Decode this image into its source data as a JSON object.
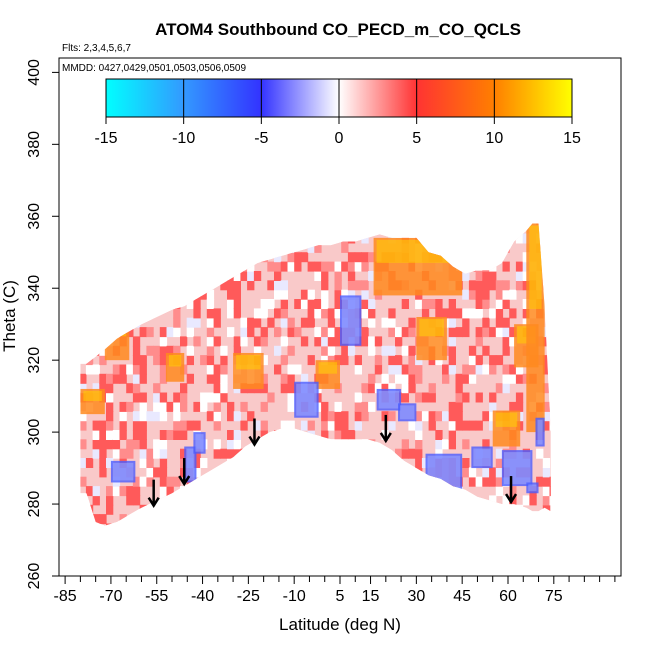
{
  "chart_data": {
    "type": "heatmap",
    "title": "ATOM4 Southbound CO_PECD_m_CO_QCLS",
    "subtitle_flights": "Flts: 2,3,4,5,6,7",
    "subtitle_dates": "MMDD: 0427,0429,0501,0503,0506,0509",
    "xlabel": "Latitude (deg N)",
    "ylabel": "Theta (C)",
    "xlim": [
      -87,
      97
    ],
    "ylim": [
      260,
      404
    ],
    "x_ticks": [
      -85,
      -70,
      -55,
      -40,
      -25,
      -10,
      5,
      15,
      30,
      45,
      60,
      75
    ],
    "x_tick_labels": [
      "-85",
      "-70",
      "-55",
      "-40",
      "-25",
      "-10",
      "5",
      "15",
      "30",
      "45",
      "60",
      "75"
    ],
    "x_minor_ticks": [
      -80,
      -75,
      -65,
      -60,
      -50,
      -45,
      -35,
      -30,
      -20,
      -15,
      -5,
      0,
      10,
      20,
      25,
      35,
      40,
      50,
      55,
      65,
      70,
      80,
      85,
      90,
      95
    ],
    "y_ticks": [
      260,
      280,
      300,
      320,
      340,
      360,
      380,
      400
    ],
    "y_tick_labels": [
      "260",
      "280",
      "300",
      "320",
      "340",
      "360",
      "380",
      "400"
    ],
    "colorbar": {
      "min": -15,
      "max": 15,
      "ticks": [
        -15,
        -10,
        -5,
        0,
        5,
        10,
        15
      ],
      "tick_labels": [
        "-15",
        "-10",
        "-5",
        "0",
        "5",
        "10",
        "15"
      ],
      "colors": [
        "#00ffff",
        "#3399ff",
        "#3333ff",
        "#ffffff",
        "#ff3333",
        "#ff7f00",
        "#ffff00"
      ]
    },
    "arrows_latitude": [
      -56,
      -46,
      -23,
      20,
      61
    ],
    "data_envelope": {
      "lat": [
        -80,
        -78,
        -75,
        -72,
        -68,
        -64,
        -60,
        -55,
        -50,
        -46,
        -42,
        -38,
        -34,
        -30,
        -26,
        -22,
        -18,
        -14,
        -10,
        -6,
        -2,
        2,
        6,
        10,
        14,
        18,
        22,
        26,
        30,
        34,
        38,
        42,
        46,
        50,
        54,
        58,
        62,
        66,
        68,
        70,
        72,
        74
      ],
      "theta_min": [
        283,
        283,
        275,
        274,
        275,
        277,
        279,
        281,
        283,
        285,
        287,
        289,
        291,
        293,
        296,
        298,
        300,
        301,
        301,
        300,
        299,
        298,
        298,
        298,
        298,
        297,
        295,
        292,
        290,
        288,
        287,
        285,
        284,
        282,
        281,
        280,
        280,
        279,
        278,
        278,
        279,
        278
      ],
      "theta_max": [
        319,
        319,
        321,
        323,
        326,
        328,
        330,
        332,
        334,
        335,
        337,
        339,
        341,
        343,
        345,
        347,
        348,
        349,
        350,
        351,
        352,
        352,
        353,
        353,
        354,
        355,
        354,
        354,
        354,
        350,
        349,
        346,
        344,
        345,
        345,
        347,
        353,
        356,
        358,
        358,
        335,
        300
      ]
    },
    "blue_regions": [
      {
        "lat": [
          -70,
          -62
        ],
        "theta": [
          286,
          292
        ]
      },
      {
        "lat": [
          -46,
          -42
        ],
        "theta": [
          286,
          296
        ]
      },
      {
        "lat": [
          -43,
          -39
        ],
        "theta": [
          294,
          300
        ]
      },
      {
        "lat": [
          5,
          12
        ],
        "theta": [
          324,
          338
        ]
      },
      {
        "lat": [
          17,
          25
        ],
        "theta": [
          306,
          312
        ]
      },
      {
        "lat": [
          24,
          30
        ],
        "theta": [
          303,
          308
        ]
      },
      {
        "lat": [
          33,
          45
        ],
        "theta": [
          284,
          294
        ]
      },
      {
        "lat": [
          48,
          55
        ],
        "theta": [
          290,
          296
        ]
      },
      {
        "lat": [
          58,
          68
        ],
        "theta": [
          285,
          295
        ]
      },
      {
        "lat": [
          66,
          70
        ],
        "theta": [
          283,
          286
        ]
      },
      {
        "lat": [
          69,
          72
        ],
        "theta": [
          296,
          304
        ]
      },
      {
        "lat": [
          -10,
          -2
        ],
        "theta": [
          304,
          314
        ]
      }
    ],
    "hot_regions": [
      {
        "lat": [
          -80,
          -72
        ],
        "theta": [
          305,
          312
        ]
      },
      {
        "lat": [
          -72,
          -64
        ],
        "theta": [
          320,
          332
        ]
      },
      {
        "lat": [
          -52,
          -46
        ],
        "theta": [
          314,
          322
        ]
      },
      {
        "lat": [
          -30,
          -20
        ],
        "theta": [
          312,
          322
        ]
      },
      {
        "lat": [
          -3,
          5
        ],
        "theta": [
          312,
          320
        ]
      },
      {
        "lat": [
          16,
          45
        ],
        "theta": [
          338,
          354
        ]
      },
      {
        "lat": [
          30,
          40
        ],
        "theta": [
          320,
          332
        ]
      },
      {
        "lat": [
          55,
          64
        ],
        "theta": [
          296,
          306
        ]
      },
      {
        "lat": [
          62,
          70
        ],
        "theta": [
          318,
          330
        ]
      },
      {
        "lat": [
          66,
          72
        ],
        "theta": [
          300,
          358
        ]
      }
    ]
  }
}
